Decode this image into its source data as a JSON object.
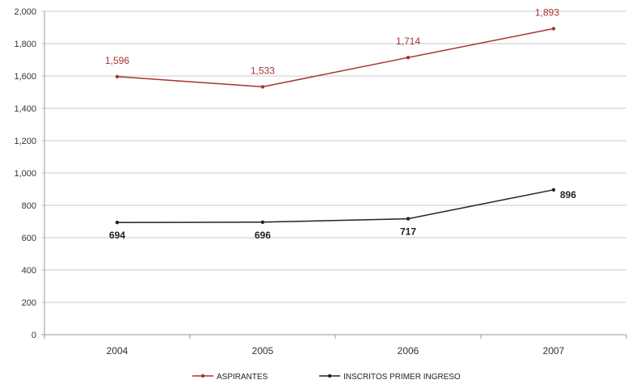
{
  "chart_data": {
    "type": "line",
    "categories": [
      "2004",
      "2005",
      "2006",
      "2007"
    ],
    "series": [
      {
        "name": "ASPIRANTES",
        "values": [
          1596,
          1533,
          1714,
          1893
        ],
        "color": "#a6332b",
        "labels": [
          "1,596",
          "1,533",
          "1,714",
          "1,893"
        ]
      },
      {
        "name": "INSCRITOS PRIMER INGRESO",
        "values": [
          694,
          696,
          717,
          896
        ],
        "color": "#222222",
        "labels": [
          "694",
          "696",
          "717",
          "896"
        ]
      }
    ],
    "yticks": [
      "0",
      "200",
      "400",
      "600",
      "800",
      "1,000",
      "1,200",
      "1,400",
      "1,600",
      "1,800",
      "2,000"
    ],
    "ylim": [
      0,
      2000
    ],
    "grid": true,
    "legend_position": "bottom"
  }
}
